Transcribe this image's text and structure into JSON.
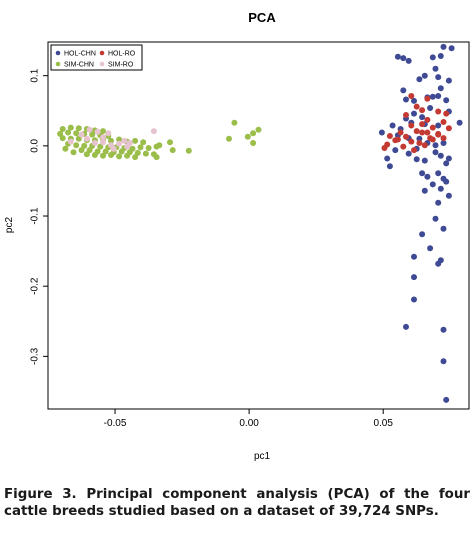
{
  "caption": {
    "lead": "Figure 3.",
    "text": "Principal component analysis (PCA) of the four cattle breeds studied based on a dataset of 39,724 SNPs."
  },
  "colors": {
    "HOL-CHN": "#3f4a95",
    "HOL-RO": "#c43a32",
    "SIM-CHN": "#9bbd4a",
    "SIM-RO": "#e6c3cf"
  },
  "chart_data": {
    "type": "scatter",
    "title": "PCA",
    "xlabel": "pc1",
    "ylabel": "pc2",
    "xlim": [
      -0.075,
      0.082
    ],
    "ylim": [
      -0.375,
      0.148
    ],
    "xticks": [
      -0.05,
      0.0,
      0.05
    ],
    "xtick_labels": [
      "-0.05",
      "0.00",
      "0.05"
    ],
    "yticks": [
      -0.3,
      -0.2,
      -0.1,
      0.0,
      0.1
    ],
    "ytick_labels": [
      "-0.3",
      "-0.2",
      "-0.1",
      "0.0",
      "0.1"
    ],
    "legend_position": "top-left",
    "grid": false,
    "series": [
      {
        "name": "HOL-CHN",
        "points": [
          [
            0.0555,
            0.127
          ],
          [
            0.0575,
            0.125
          ],
          [
            0.0595,
            0.121
          ],
          [
            0.0725,
            0.141
          ],
          [
            0.0755,
            0.139
          ],
          [
            0.0715,
            0.128
          ],
          [
            0.0685,
            0.126
          ],
          [
            0.0695,
            0.11
          ],
          [
            0.0655,
            0.1
          ],
          [
            0.0635,
            0.095
          ],
          [
            0.0705,
            0.098
          ],
          [
            0.0745,
            0.093
          ],
          [
            0.0715,
            0.082
          ],
          [
            0.0575,
            0.079
          ],
          [
            0.0585,
            0.066
          ],
          [
            0.0665,
            0.069
          ],
          [
            0.0615,
            0.064
          ],
          [
            0.0685,
            0.07
          ],
          [
            0.0735,
            0.065
          ],
          [
            0.0705,
            0.071
          ],
          [
            0.0675,
            0.054
          ],
          [
            0.0745,
            0.049
          ],
          [
            0.0615,
            0.046
          ],
          [
            0.0645,
            0.041
          ],
          [
            0.0585,
            0.039
          ],
          [
            0.0605,
            0.033
          ],
          [
            0.0655,
            0.031
          ],
          [
            0.0705,
            0.029
          ],
          [
            0.0785,
            0.033
          ],
          [
            0.0535,
            0.029
          ],
          [
            0.0565,
            0.024
          ],
          [
            0.0495,
            0.019
          ],
          [
            0.0555,
            0.015
          ],
          [
            0.0595,
            0.011
          ],
          [
            0.0635,
            0.01
          ],
          [
            0.0665,
            0.004
          ],
          [
            0.0695,
            0.001
          ],
          [
            0.0725,
            0.004
          ],
          [
            0.0625,
            -0.004
          ],
          [
            0.0545,
            -0.006
          ],
          [
            0.0595,
            -0.011
          ],
          [
            0.0515,
            -0.018
          ],
          [
            0.0625,
            -0.019
          ],
          [
            0.0655,
            -0.021
          ],
          [
            0.0695,
            -0.009
          ],
          [
            0.0715,
            -0.014
          ],
          [
            0.0745,
            -0.018
          ],
          [
            0.0735,
            -0.025
          ],
          [
            0.0525,
            -0.029
          ],
          [
            0.0645,
            -0.039
          ],
          [
            0.0665,
            -0.044
          ],
          [
            0.0705,
            -0.039
          ],
          [
            0.0725,
            -0.047
          ],
          [
            0.0685,
            -0.055
          ],
          [
            0.0735,
            -0.051
          ],
          [
            0.0715,
            -0.061
          ],
          [
            0.0655,
            -0.064
          ],
          [
            0.0745,
            -0.071
          ],
          [
            0.0705,
            -0.081
          ],
          [
            0.0695,
            -0.104
          ],
          [
            0.0725,
            -0.118
          ],
          [
            0.0645,
            -0.126
          ],
          [
            0.0675,
            -0.146
          ],
          [
            0.0715,
            -0.163
          ],
          [
            0.0615,
            -0.158
          ],
          [
            0.0705,
            -0.168
          ],
          [
            0.0615,
            -0.187
          ],
          [
            0.0615,
            -0.219
          ],
          [
            0.0585,
            -0.258
          ],
          [
            0.0725,
            -0.262
          ],
          [
            0.0725,
            -0.307
          ],
          [
            0.0735,
            -0.362
          ]
        ]
      },
      {
        "name": "HOL-RO",
        "points": [
          [
            0.0605,
            0.071
          ],
          [
            0.0665,
            0.067
          ],
          [
            0.0625,
            0.056
          ],
          [
            0.0645,
            0.051
          ],
          [
            0.0705,
            0.049
          ],
          [
            0.0735,
            0.046
          ],
          [
            0.0585,
            0.044
          ],
          [
            0.0665,
            0.037
          ],
          [
            0.0725,
            0.034
          ],
          [
            0.0605,
            0.029
          ],
          [
            0.0645,
            0.031
          ],
          [
            0.0685,
            0.026
          ],
          [
            0.0745,
            0.025
          ],
          [
            0.0565,
            0.019
          ],
          [
            0.0625,
            0.021
          ],
          [
            0.0665,
            0.019
          ],
          [
            0.0705,
            0.016
          ],
          [
            0.0525,
            0.014
          ],
          [
            0.0555,
            0.009
          ],
          [
            0.0605,
            0.006
          ],
          [
            0.0635,
            0.004
          ],
          [
            0.0685,
            0.009
          ],
          [
            0.0725,
            0.011
          ],
          [
            0.0515,
            0.002
          ],
          [
            0.0575,
            -0.001
          ],
          [
            0.0655,
            0.001
          ],
          [
            0.0505,
            -0.003
          ],
          [
            0.0615,
            -0.006
          ],
          [
            0.0545,
            0.008
          ],
          [
            0.0705,
            0.017
          ],
          [
            0.0585,
            0.013
          ],
          [
            0.0675,
            0.011
          ],
          [
            0.0645,
            0.019
          ]
        ]
      },
      {
        "name": "SIM-CHN",
        "points": [
          [
            -0.0695,
            0.024
          ],
          [
            -0.0665,
            0.026
          ],
          [
            -0.0635,
            0.025
          ],
          [
            -0.0605,
            0.024
          ],
          [
            -0.0575,
            0.022
          ],
          [
            -0.0545,
            0.021
          ],
          [
            -0.0705,
            0.017
          ],
          [
            -0.0675,
            0.019
          ],
          [
            -0.0645,
            0.018
          ],
          [
            -0.0615,
            0.017
          ],
          [
            -0.0585,
            0.016
          ],
          [
            -0.0555,
            0.015
          ],
          [
            -0.0525,
            0.014
          ],
          [
            -0.0695,
            0.011
          ],
          [
            -0.0665,
            0.01
          ],
          [
            -0.0635,
            0.01
          ],
          [
            -0.0605,
            0.008
          ],
          [
            -0.0575,
            0.008
          ],
          [
            -0.0545,
            0.009
          ],
          [
            -0.0515,
            0.007
          ],
          [
            -0.0485,
            0.009
          ],
          [
            -0.0455,
            0.006
          ],
          [
            -0.0425,
            0.007
          ],
          [
            -0.0395,
            0.005
          ],
          [
            -0.0675,
            0.003
          ],
          [
            -0.0645,
            0.001
          ],
          [
            -0.0615,
            0.0
          ],
          [
            -0.0585,
            0.0
          ],
          [
            -0.0555,
            -0.001
          ],
          [
            -0.0525,
            -0.002
          ],
          [
            -0.0495,
            -0.002
          ],
          [
            -0.0465,
            -0.003
          ],
          [
            -0.0435,
            -0.004
          ],
          [
            -0.0405,
            -0.002
          ],
          [
            -0.0375,
            -0.003
          ],
          [
            -0.0345,
            -0.001
          ],
          [
            -0.0625,
            -0.006
          ],
          [
            -0.0595,
            -0.006
          ],
          [
            -0.0565,
            -0.008
          ],
          [
            -0.0535,
            -0.008
          ],
          [
            -0.0505,
            -0.009
          ],
          [
            -0.0475,
            -0.008
          ],
          [
            -0.0445,
            -0.009
          ],
          [
            -0.0415,
            -0.01
          ],
          [
            -0.0385,
            -0.011
          ],
          [
            -0.0355,
            -0.012
          ],
          [
            -0.0605,
            -0.012
          ],
          [
            -0.0575,
            -0.013
          ],
          [
            -0.0545,
            -0.014
          ],
          [
            -0.0515,
            -0.013
          ],
          [
            -0.0485,
            -0.015
          ],
          [
            -0.0455,
            -0.014
          ],
          [
            -0.0425,
            -0.016
          ],
          [
            -0.0655,
            -0.009
          ],
          [
            -0.0685,
            -0.004
          ],
          [
            -0.0335,
            0.001
          ],
          [
            -0.0295,
            0.005
          ],
          [
            -0.0285,
            -0.006
          ],
          [
            -0.0225,
            -0.007
          ],
          [
            -0.0345,
            -0.016
          ],
          [
            -0.0055,
            0.033
          ],
          [
            0.0035,
            0.023
          ],
          [
            0.0015,
            0.018
          ],
          [
            -0.0005,
            0.013
          ],
          [
            0.0015,
            0.004
          ],
          [
            -0.0075,
            0.01
          ]
        ]
      },
      {
        "name": "SIM-RO",
        "points": [
          [
            -0.0595,
            0.023
          ],
          [
            -0.0565,
            0.02
          ],
          [
            -0.0625,
            0.016
          ],
          [
            -0.0545,
            0.012
          ],
          [
            -0.0525,
            0.018
          ],
          [
            -0.0605,
            0.01
          ],
          [
            -0.0575,
            0.004
          ],
          [
            -0.0545,
            0.005
          ],
          [
            -0.0515,
            0.001
          ],
          [
            -0.0485,
            0.003
          ],
          [
            -0.0465,
            0.007
          ],
          [
            -0.0445,
            0.004
          ],
          [
            -0.0665,
            0.006
          ],
          [
            -0.0505,
            -0.004
          ],
          [
            -0.0455,
            -0.001
          ],
          [
            -0.0355,
            0.021
          ]
        ]
      }
    ]
  }
}
